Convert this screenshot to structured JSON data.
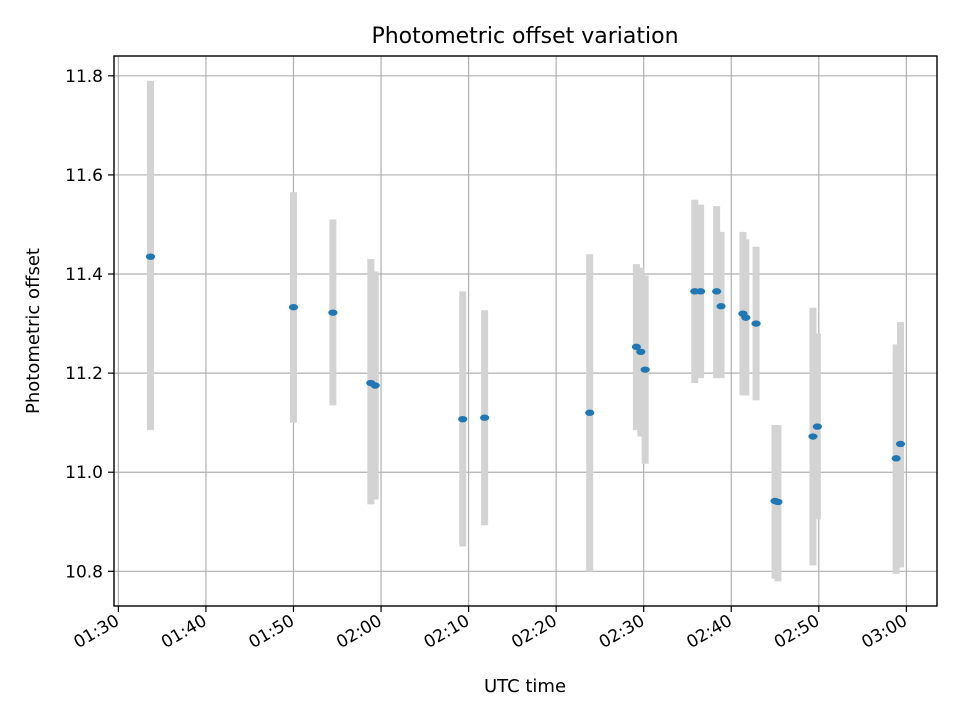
{
  "chart_data": {
    "type": "scatter",
    "title": "Photometric offset variation",
    "xlabel": "UTC time",
    "ylabel": "Photometric offset",
    "x_type": "time",
    "xlim": [
      "01:29:30",
      "03:03:30"
    ],
    "ylim": [
      10.73,
      11.84
    ],
    "x_ticks": [
      "01:30",
      "01:40",
      "01:50",
      "02:00",
      "02:10",
      "02:20",
      "02:30",
      "02:40",
      "02:50",
      "03:00"
    ],
    "y_ticks": [
      10.8,
      11.0,
      11.2,
      11.4,
      11.6,
      11.8
    ],
    "y_tick_labels": [
      "10.8",
      "11.0",
      "11.2",
      "11.4",
      "11.6",
      "11.8"
    ],
    "grid": true,
    "marker_color": "#1f77b4",
    "error_bar_color": "#d3d3d3",
    "points": [
      {
        "x": "01:33:40",
        "y": 11.435,
        "low": 11.085,
        "high": 11.79
      },
      {
        "x": "01:50:00",
        "y": 11.333,
        "low": 11.1,
        "high": 11.565
      },
      {
        "x": "01:54:30",
        "y": 11.322,
        "low": 11.135,
        "high": 11.51
      },
      {
        "x": "01:58:50",
        "y": 11.18,
        "low": 10.935,
        "high": 11.43
      },
      {
        "x": "01:59:20",
        "y": 11.175,
        "low": 10.945,
        "high": 11.405
      },
      {
        "x": "02:09:20",
        "y": 11.107,
        "low": 10.85,
        "high": 11.365
      },
      {
        "x": "02:11:50",
        "y": 11.11,
        "low": 10.893,
        "high": 11.327
      },
      {
        "x": "02:23:50",
        "y": 11.12,
        "low": 10.8,
        "high": 11.44
      },
      {
        "x": "02:29:10",
        "y": 11.253,
        "low": 11.085,
        "high": 11.42
      },
      {
        "x": "02:29:40",
        "y": 11.243,
        "low": 11.072,
        "high": 11.413
      },
      {
        "x": "02:30:10",
        "y": 11.207,
        "low": 11.017,
        "high": 11.397
      },
      {
        "x": "02:35:50",
        "y": 11.365,
        "low": 11.18,
        "high": 11.55
      },
      {
        "x": "02:36:30",
        "y": 11.365,
        "low": 11.19,
        "high": 11.54
      },
      {
        "x": "02:38:20",
        "y": 11.365,
        "low": 11.19,
        "high": 11.537
      },
      {
        "x": "02:38:50",
        "y": 11.335,
        "low": 11.19,
        "high": 11.485
      },
      {
        "x": "02:41:20",
        "y": 11.32,
        "low": 11.155,
        "high": 11.485
      },
      {
        "x": "02:41:40",
        "y": 11.312,
        "low": 11.155,
        "high": 11.47
      },
      {
        "x": "02:42:50",
        "y": 11.3,
        "low": 11.145,
        "high": 11.455
      },
      {
        "x": "02:45:00",
        "y": 10.942,
        "low": 10.785,
        "high": 11.095
      },
      {
        "x": "02:45:20",
        "y": 10.94,
        "low": 10.78,
        "high": 11.095
      },
      {
        "x": "02:49:20",
        "y": 11.072,
        "low": 10.812,
        "high": 11.332
      },
      {
        "x": "02:49:50",
        "y": 11.092,
        "low": 10.905,
        "high": 11.28
      },
      {
        "x": "02:58:50",
        "y": 11.028,
        "low": 10.795,
        "high": 11.258
      },
      {
        "x": "02:59:20",
        "y": 11.057,
        "low": 10.808,
        "high": 11.303
      }
    ]
  }
}
